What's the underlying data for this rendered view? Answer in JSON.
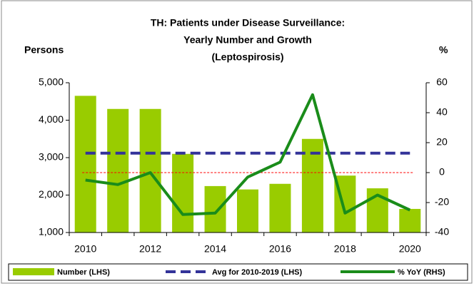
{
  "chart_data": {
    "type": "bar-line",
    "title_lines": [
      "TH: Patients under Disease Surveillance:",
      "Yearly Number and Growth",
      "(Leptospirosis)"
    ],
    "y_label": "Persons",
    "y2_label": "%",
    "categories": [
      "2010",
      null,
      "2012",
      null,
      "2014",
      null,
      "2016",
      null,
      "2018",
      null,
      "2020"
    ],
    "bars": {
      "name": "Number (LHS)",
      "color": "#99cc00",
      "values": [
        4650,
        4300,
        4300,
        3100,
        2240,
        2150,
        2300,
        3500,
        2520,
        2180,
        1630
      ]
    },
    "average": {
      "name": "Avg for 2010-2019 (LHS)",
      "color": "#333399",
      "value": 3120
    },
    "series": [
      {
        "name": "% YoY (RHS)",
        "color": "#1a8c1a",
        "axis": "y2",
        "values": [
          -5,
          -8,
          0,
          -28,
          -27,
          -3,
          7,
          52,
          -27,
          -15,
          -25
        ]
      }
    ],
    "ylim": [
      1000,
      5000
    ],
    "yticks": [
      {
        "value": 1000,
        "label": "1,000"
      },
      {
        "value": 2000,
        "label": "2,000"
      },
      {
        "value": 3000,
        "label": "3,000"
      },
      {
        "value": 4000,
        "label": "4,000"
      },
      {
        "value": 5000,
        "label": "5,000"
      }
    ],
    "y2lim": [
      -40,
      60
    ],
    "y2ticks": [
      -40,
      -20,
      0,
      20,
      40,
      60
    ],
    "zero_line_color": "#ff0000",
    "legend": "bottom"
  }
}
